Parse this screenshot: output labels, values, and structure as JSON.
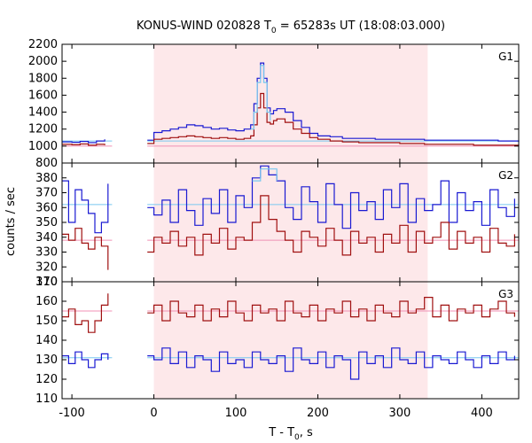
{
  "chart_data": {
    "type": "line",
    "title_main": "KONUS-WIND 020828 T",
    "title_sub": "0",
    "title_rest": " = 65283s UT (18:08:03.000)",
    "xlabel_main": "T - T",
    "xlabel_sub": "0",
    "xlabel_rest": ", s",
    "ylabel": "counts / sec",
    "xlim": [
      -112,
      445
    ],
    "xticks": [
      -100,
      0,
      100,
      200,
      300,
      400
    ],
    "highlight": {
      "x0": 0,
      "x1": 334,
      "color": "#fde8ea"
    },
    "gap": [
      -51,
      -8
    ],
    "colors": {
      "blue": "#1a1ad2",
      "red": "#a01010",
      "cyan": "#78c8f0",
      "pink": "#f090b4"
    },
    "panels": [
      {
        "name": "G1",
        "ylim": [
          800,
          2200
        ],
        "yticks": [
          800,
          1000,
          1200,
          1400,
          1600,
          1800,
          2000,
          2200
        ],
        "bg_blue": 1060,
        "bg_red": 1000,
        "series": [
          {
            "name": "G1 blue",
            "color": "blue",
            "pre_x": [
              -112,
              -100,
              -90,
              -80,
              -70,
              -60
            ],
            "pre_y": [
              1050,
              1045,
              1055,
              1040,
              1060,
              1080
            ],
            "x": [
              -8,
              0,
              10,
              20,
              30,
              40,
              50,
              60,
              70,
              80,
              90,
              100,
              110,
              118,
              122,
              126,
              130,
              134,
              138,
              142,
              146,
              150,
              160,
              170,
              180,
              190,
              200,
              215,
              230,
              250,
              270,
              300,
              330,
              360,
              390,
              420,
              445
            ],
            "y": [
              1070,
              1160,
              1180,
              1200,
              1220,
              1250,
              1240,
              1220,
              1200,
              1210,
              1190,
              1180,
              1200,
              1250,
              1500,
              1800,
              1980,
              1800,
              1450,
              1380,
              1420,
              1440,
              1400,
              1300,
              1220,
              1150,
              1120,
              1110,
              1090,
              1090,
              1080,
              1080,
              1070,
              1070,
              1070,
              1060,
              1050
            ]
          },
          {
            "name": "G1 red",
            "color": "red",
            "pre_x": [
              -112,
              -100,
              -90,
              -80,
              -70,
              -60
            ],
            "pre_y": [
              1020,
              1015,
              1025,
              1010,
              1020,
              1010
            ],
            "x": [
              -8,
              0,
              10,
              20,
              30,
              40,
              50,
              60,
              70,
              80,
              90,
              100,
              110,
              118,
              122,
              126,
              130,
              134,
              138,
              142,
              146,
              150,
              160,
              170,
              180,
              190,
              200,
              215,
              230,
              250,
              270,
              300,
              330,
              360,
              390,
              420,
              445
            ],
            "y": [
              1030,
              1080,
              1090,
              1100,
              1110,
              1120,
              1110,
              1100,
              1090,
              1100,
              1090,
              1080,
              1090,
              1120,
              1250,
              1450,
              1620,
              1450,
              1280,
              1260,
              1300,
              1320,
              1280,
              1200,
              1150,
              1100,
              1080,
              1060,
              1050,
              1040,
              1040,
              1030,
              1020,
              1020,
              1010,
              1010,
              1000
            ]
          },
          {
            "name": "G1 cyan",
            "color": "cyan",
            "pre_x": [],
            "pre_y": [],
            "x": [
              118,
              122,
              126,
              130,
              134,
              138,
              142
            ],
            "y": [
              1200,
              1400,
              1750,
              1950,
              1750,
              1400,
              1300
            ]
          }
        ]
      },
      {
        "name": "G2",
        "ylim": [
          310,
          390
        ],
        "yticks": [
          310,
          320,
          330,
          340,
          350,
          360,
          370,
          380
        ],
        "bg_blue": 362,
        "bg_red": 338,
        "series": [
          {
            "name": "G2 blue",
            "color": "blue",
            "pre_x": [
              -112,
              -104,
              -96,
              -88,
              -80,
              -72,
              -64,
              -56
            ],
            "pre_y": [
              378,
              350,
              372,
              365,
              356,
              343,
              350,
              376
            ],
            "x": [
              -8,
              0,
              10,
              20,
              30,
              40,
              50,
              60,
              70,
              80,
              90,
              100,
              110,
              120,
              130,
              140,
              150,
              160,
              170,
              180,
              190,
              200,
              210,
              220,
              230,
              240,
              250,
              260,
              270,
              280,
              290,
              300,
              310,
              320,
              330,
              340,
              350,
              360,
              370,
              380,
              390,
              400,
              410,
              420,
              430,
              440
            ],
            "y": [
              360,
              355,
              365,
              350,
              372,
              358,
              348,
              366,
              356,
              372,
              350,
              368,
              360,
              380,
              388,
              382,
              378,
              360,
              352,
              374,
              364,
              350,
              376,
              362,
              346,
              370,
              358,
              364,
              352,
              372,
              360,
              376,
              350,
              366,
              358,
              362,
              378,
              350,
              370,
              358,
              364,
              348,
              372,
              360,
              354,
              366
            ]
          },
          {
            "name": "G2 red",
            "color": "red",
            "pre_x": [
              -112,
              -104,
              -96,
              -88,
              -80,
              -72,
              -64,
              -56
            ],
            "pre_y": [
              342,
              338,
              346,
              336,
              332,
              340,
              334,
              318
            ],
            "x": [
              -8,
              0,
              10,
              20,
              30,
              40,
              50,
              60,
              70,
              80,
              90,
              100,
              110,
              120,
              130,
              140,
              150,
              160,
              170,
              180,
              190,
              200,
              210,
              220,
              230,
              240,
              250,
              260,
              270,
              280,
              290,
              300,
              310,
              320,
              330,
              340,
              350,
              360,
              370,
              380,
              390,
              400,
              410,
              420,
              430,
              440
            ],
            "y": [
              330,
              340,
              336,
              344,
              334,
              340,
              328,
              342,
              336,
              346,
              332,
              340,
              338,
              350,
              368,
              352,
              344,
              338,
              330,
              344,
              340,
              334,
              346,
              338,
              328,
              344,
              336,
              340,
              330,
              342,
              336,
              348,
              330,
              344,
              336,
              340,
              350,
              332,
              344,
              336,
              340,
              330,
              346,
              336,
              334,
              342
            ]
          },
          {
            "name": "G2 cyan",
            "color": "cyan",
            "pre_x": [],
            "pre_y": [],
            "x": [
              120,
              130,
              140,
              150
            ],
            "y": [
              378,
              386,
              386,
              378
            ]
          }
        ]
      },
      {
        "name": "G3",
        "ylim": [
          110,
          170
        ],
        "yticks": [
          110,
          120,
          130,
          140,
          150,
          160,
          170
        ],
        "bg_blue": 131,
        "bg_red": 155,
        "series": [
          {
            "name": "G3 blue",
            "color": "blue",
            "pre_x": [
              -112,
              -104,
              -96,
              -88,
              -80,
              -72,
              -64,
              -56
            ],
            "pre_y": [
              132,
              128,
              134,
              130,
              126,
              130,
              133,
              130
            ],
            "x": [
              -8,
              0,
              10,
              20,
              30,
              40,
              50,
              60,
              70,
              80,
              90,
              100,
              110,
              120,
              130,
              140,
              150,
              160,
              170,
              180,
              190,
              200,
              210,
              220,
              230,
              240,
              250,
              260,
              270,
              280,
              290,
              300,
              310,
              320,
              330,
              340,
              350,
              360,
              370,
              380,
              390,
              400,
              410,
              420,
              430,
              440
            ],
            "y": [
              132,
              130,
              136,
              128,
              134,
              126,
              132,
              130,
              124,
              134,
              128,
              130,
              126,
              134,
              130,
              128,
              132,
              124,
              136,
              130,
              128,
              134,
              126,
              132,
              130,
              120,
              134,
              128,
              132,
              126,
              136,
              130,
              128,
              134,
              126,
              132,
              130,
              128,
              134,
              130,
              126,
              132,
              128,
              134,
              130,
              132
            ]
          },
          {
            "name": "G3 red",
            "color": "red",
            "pre_x": [
              -112,
              -104,
              -96,
              -88,
              -80,
              -72,
              -64,
              -56
            ],
            "pre_y": [
              152,
              156,
              148,
              150,
              144,
              150,
              158,
              164
            ],
            "x": [
              -8,
              0,
              10,
              20,
              30,
              40,
              50,
              60,
              70,
              80,
              90,
              100,
              110,
              120,
              130,
              140,
              150,
              160,
              170,
              180,
              190,
              200,
              210,
              220,
              230,
              240,
              250,
              260,
              270,
              280,
              290,
              300,
              310,
              320,
              330,
              340,
              350,
              360,
              370,
              380,
              390,
              400,
              410,
              420,
              430,
              440
            ],
            "y": [
              154,
              158,
              150,
              160,
              154,
              152,
              158,
              150,
              156,
              152,
              160,
              154,
              150,
              158,
              154,
              156,
              150,
              160,
              154,
              152,
              158,
              150,
              156,
              154,
              160,
              152,
              156,
              150,
              158,
              154,
              152,
              160,
              154,
              156,
              162,
              152,
              158,
              150,
              156,
              154,
              158,
              152,
              156,
              160,
              154,
              152
            ]
          }
        ]
      }
    ]
  }
}
